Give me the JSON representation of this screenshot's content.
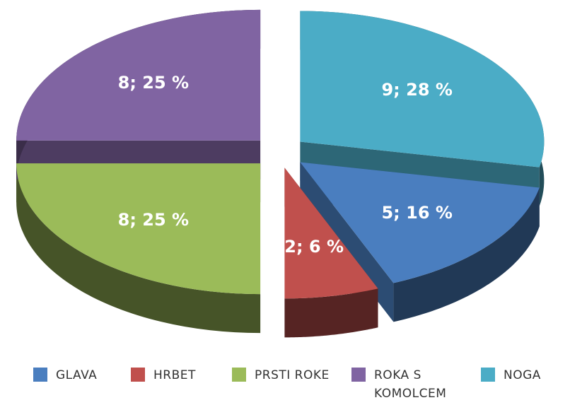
{
  "chart_data": {
    "type": "pie",
    "categories": [
      "GLAVA",
      "HRBET",
      "PRSTI ROKE",
      "ROKA S KOMOLCEM",
      "NOGA"
    ],
    "values": [
      5,
      2,
      8,
      8,
      9
    ],
    "value_labels": [
      "5; 16 %",
      "2; 6 %",
      "8; 25 %",
      "8; 25 %",
      "9; 28 %"
    ],
    "colors": [
      "#4a7ebf",
      "#c0504d",
      "#9bbb59",
      "#8064a2",
      "#4bacc6"
    ],
    "legend": "bottom"
  }
}
